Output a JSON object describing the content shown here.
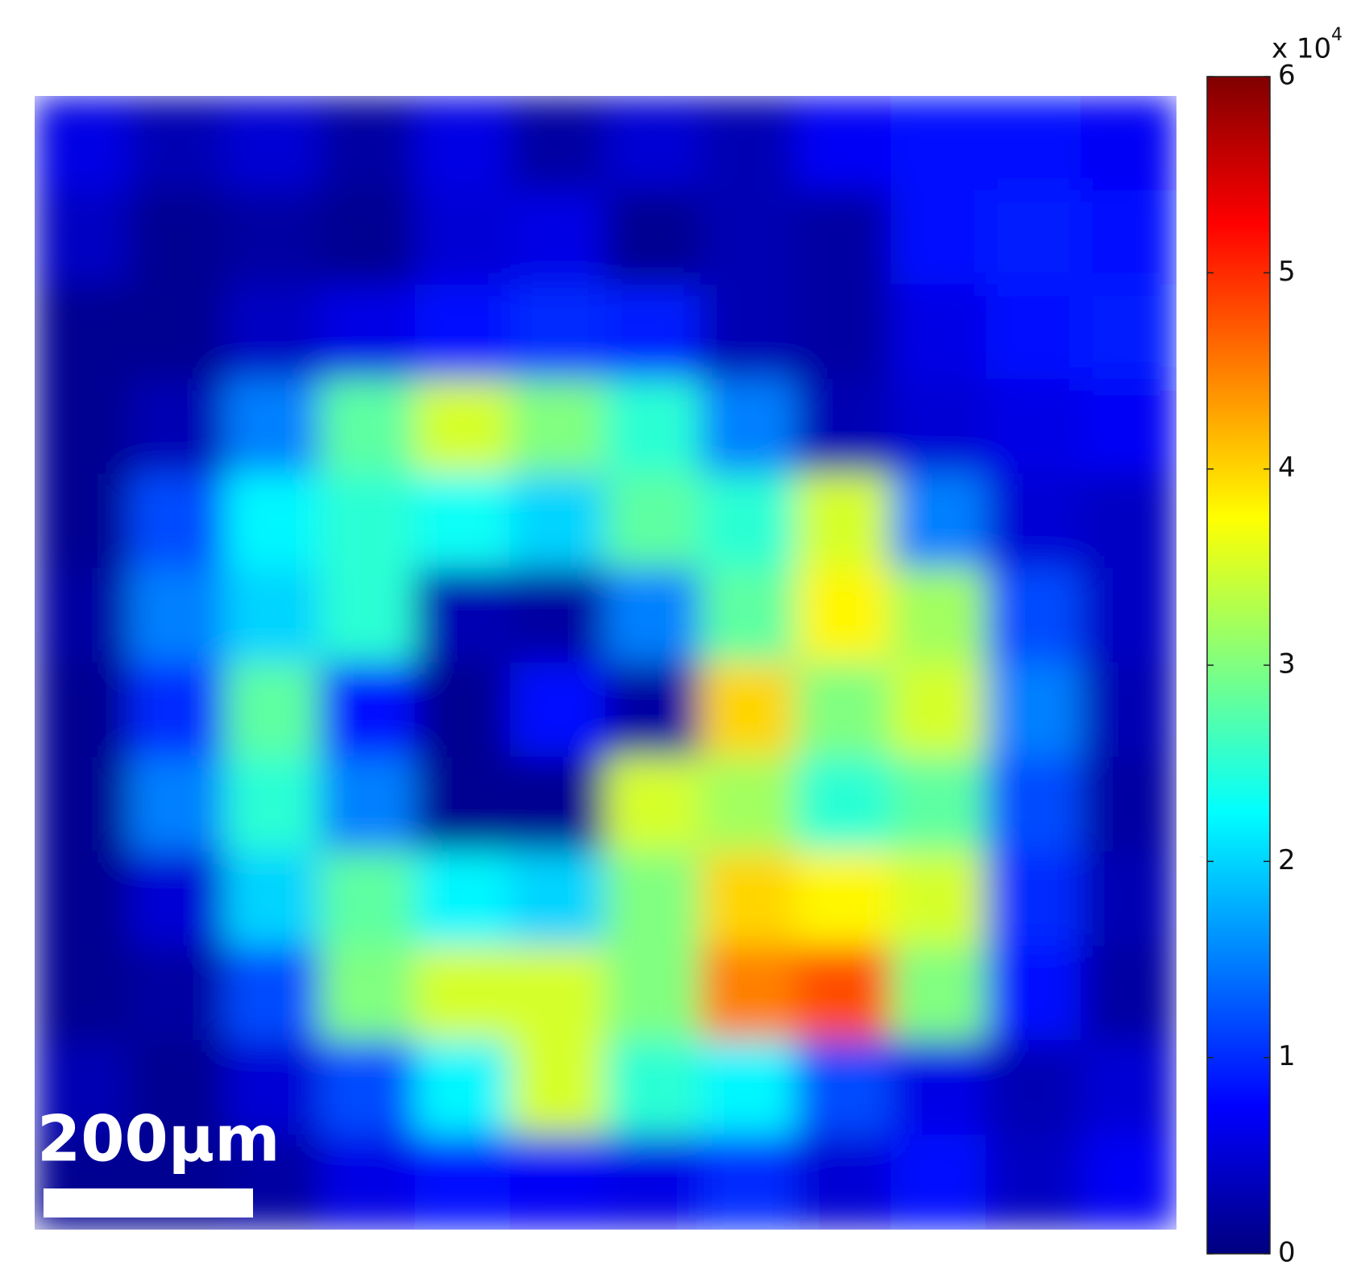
{
  "chart_data": {
    "type": "heatmap",
    "colormap": "jet",
    "values": [
      [
        0.6,
        0.3,
        0.5,
        0.2,
        0.6,
        0.2,
        0.5,
        0.3,
        0.7,
        0.8,
        0.8,
        0.7
      ],
      [
        0.4,
        0.1,
        0.2,
        0.1,
        0.5,
        0.6,
        0.1,
        0.3,
        0.2,
        0.8,
        0.9,
        0.8
      ],
      [
        0.1,
        0.1,
        0.4,
        0.6,
        0.8,
        1.0,
        0.9,
        0.3,
        0.2,
        0.6,
        0.8,
        0.9
      ],
      [
        0.1,
        0.3,
        1.5,
        2.8,
        3.5,
        3.0,
        2.5,
        1.5,
        0.3,
        0.5,
        0.6,
        0.7
      ],
      [
        0.1,
        1.2,
        2.2,
        2.5,
        2.3,
        2.0,
        2.8,
        2.5,
        3.5,
        1.5,
        0.5,
        0.4
      ],
      [
        0.2,
        1.5,
        2.0,
        2.5,
        0.3,
        0.2,
        1.5,
        2.8,
        3.8,
        3.2,
        1.2,
        0.4
      ],
      [
        0.1,
        1.0,
        2.8,
        0.8,
        0.1,
        0.8,
        0.2,
        4.0,
        3.0,
        3.5,
        1.5,
        0.3
      ],
      [
        0.1,
        1.5,
        2.5,
        1.5,
        0.1,
        0.1,
        3.5,
        3.2,
        2.5,
        2.8,
        1.2,
        0.2
      ],
      [
        0.1,
        0.5,
        2.0,
        2.8,
        2.2,
        2.0,
        3.0,
        4.0,
        3.8,
        3.5,
        1.0,
        0.3
      ],
      [
        0.1,
        0.2,
        1.2,
        3.0,
        3.5,
        3.5,
        3.0,
        4.5,
        4.8,
        3.0,
        0.8,
        0.2
      ],
      [
        0.3,
        0.1,
        0.5,
        1.2,
        2.2,
        3.5,
        2.5,
        2.2,
        1.2,
        0.6,
        0.3,
        0.5
      ],
      [
        0.1,
        0.1,
        0.2,
        0.6,
        0.8,
        0.7,
        0.6,
        1.0,
        0.5,
        0.8,
        0.4,
        0.7
      ]
    ],
    "zlim": [
      0,
      6
    ],
    "zticks": [
      0,
      1,
      2,
      3,
      4,
      5,
      6
    ],
    "colorbar_multiplier": "x 10",
    "colorbar_exponent": "4",
    "scale_bar_label": "200µm"
  }
}
